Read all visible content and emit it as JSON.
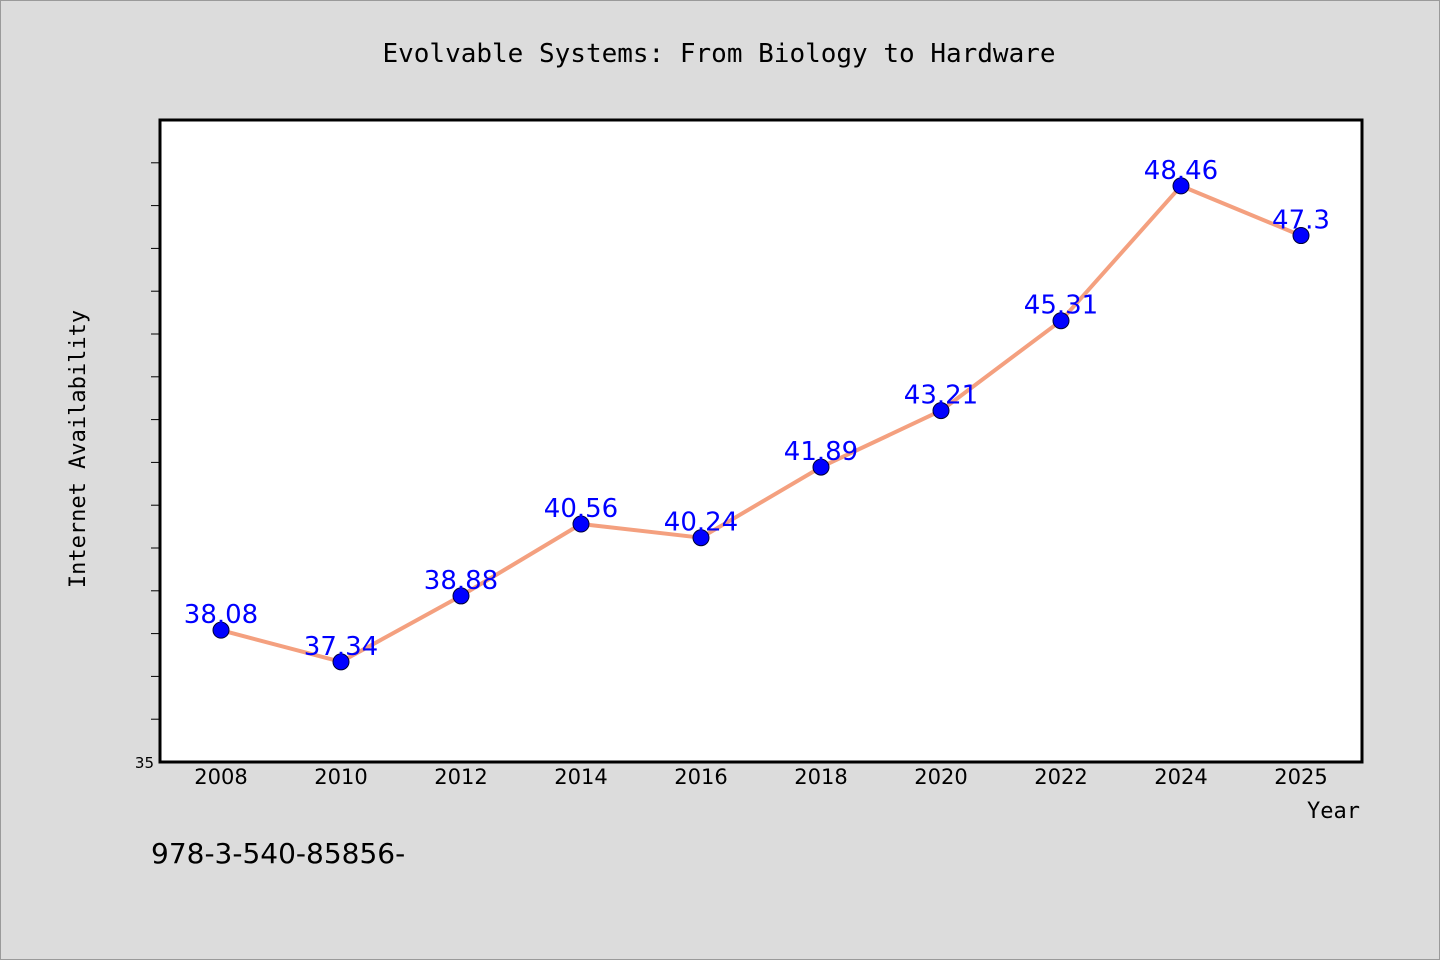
{
  "footer_text": "978-3-540-85856-",
  "colors": {
    "background": "#dcdcdc",
    "plot_background": "#ffffff",
    "line": "#f4a07f",
    "marker": "#0000ff",
    "data_label": "#0000ff",
    "axis_text": "#000000"
  },
  "chart_data": {
    "type": "line",
    "title": "Evolvable Systems: From Biology to Hardware",
    "xlabel": "Year",
    "ylabel": "Internet Availability",
    "categories": [
      "2008",
      "2010",
      "2012",
      "2014",
      "2016",
      "2018",
      "2020",
      "2022",
      "2024",
      "2025"
    ],
    "series": [
      {
        "values": [
          38.08,
          37.34,
          38.88,
          40.56,
          40.24,
          41.89,
          43.21,
          45.31,
          48.46,
          47.3
        ],
        "data_labels": [
          "38.08",
          "37.34",
          "38.88",
          "40.56",
          "40.24",
          "41.89",
          "43.21",
          "45.31",
          "48.46",
          "47.3"
        ]
      }
    ],
    "ylim": [
      35,
      50
    ],
    "ytick_labels": [
      "35"
    ],
    "grid": false,
    "legend": "none"
  }
}
